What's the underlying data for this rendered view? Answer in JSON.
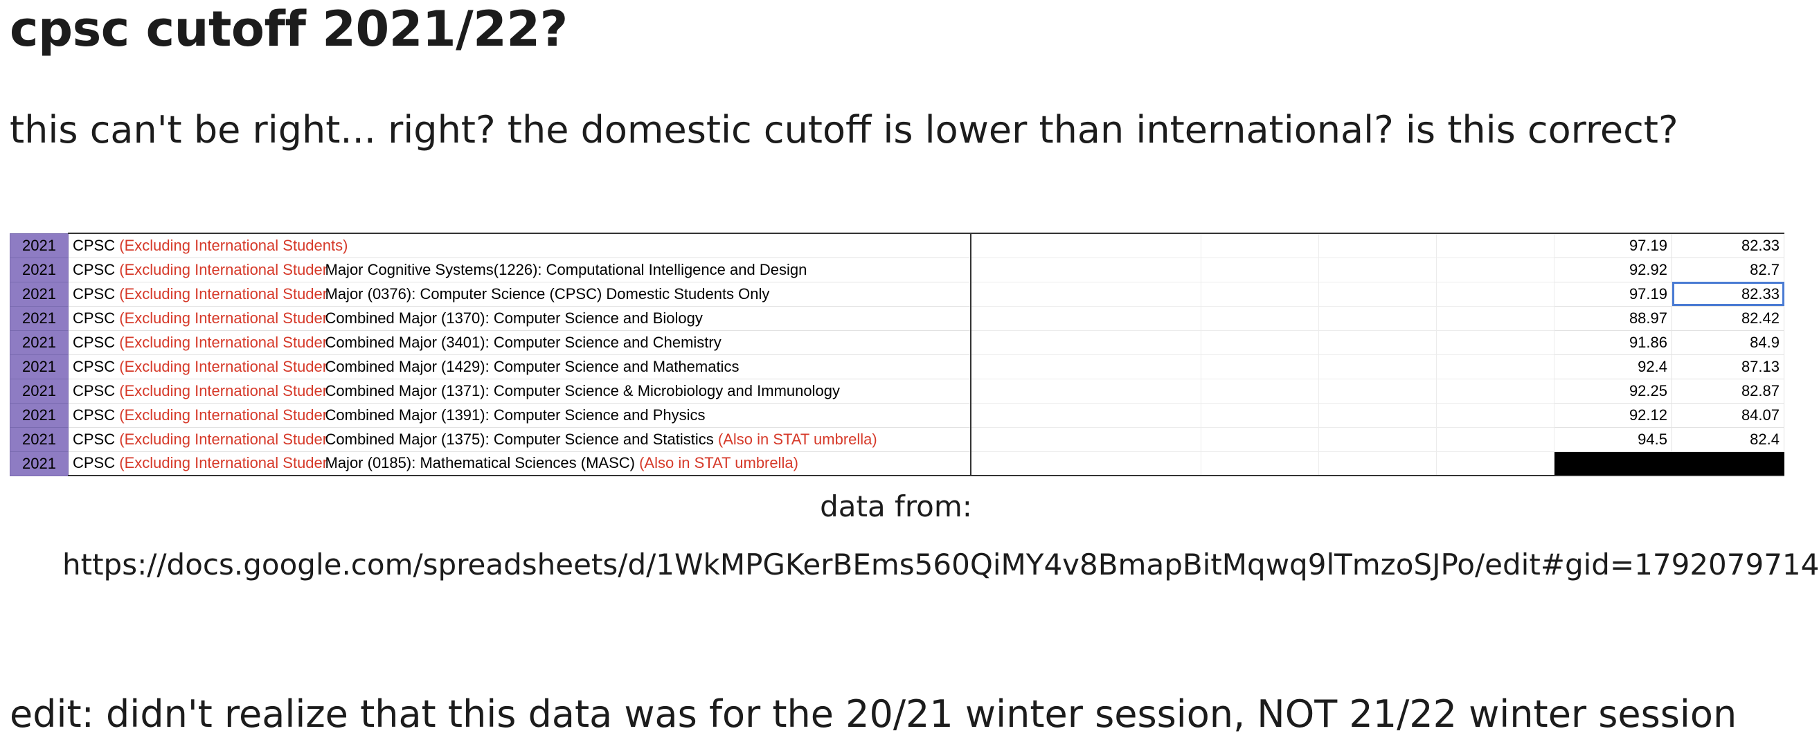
{
  "post": {
    "title": "cpsc cutoff 2021/22?",
    "body": "this can't be right... right? the domestic cutoff is lower than international? is this correct?",
    "source_label": "data from:",
    "source_url": "https://docs.google.com/spreadsheets/d/1WkMPGKerBEms560QiMY4v8BmapBitMqwq9lTmzoSJPo/edit#gid=1792079714",
    "edit_note": "edit: didn't realize that this data was for the 20/21 winter session, NOT 21/22 winter session"
  },
  "sheet": {
    "rows": [
      {
        "year": "2021",
        "prefix": "CPSC",
        "excl": "(Excluding International Students)",
        "program": "",
        "note": "",
        "v1": "97.19",
        "v2": "82.33"
      },
      {
        "year": "2021",
        "prefix": "CPSC",
        "excl": "(Excluding International Studer",
        "program": "Major Cognitive Systems(1226): Computational Intelligence and Design",
        "note": "",
        "v1": "92.92",
        "v2": "82.7"
      },
      {
        "year": "2021",
        "prefix": "CPSC",
        "excl": "(Excluding International Studer",
        "program": "Major (0376): Computer Science (CPSC) Domestic Students Only",
        "note": "",
        "v1": "97.19",
        "v2": "82.33"
      },
      {
        "year": "2021",
        "prefix": "CPSC",
        "excl": "(Excluding International Studer",
        "program": "Combined Major (1370): Computer Science and Biology",
        "note": "",
        "v1": "88.97",
        "v2": "82.42"
      },
      {
        "year": "2021",
        "prefix": "CPSC",
        "excl": "(Excluding International Studer",
        "program": "Combined Major (3401): Computer Science and Chemistry",
        "note": "",
        "v1": "91.86",
        "v2": "84.9"
      },
      {
        "year": "2021",
        "prefix": "CPSC",
        "excl": "(Excluding International Studer",
        "program": "Combined Major (1429): Computer Science and Mathematics",
        "note": "",
        "v1": "92.4",
        "v2": "87.13"
      },
      {
        "year": "2021",
        "prefix": "CPSC",
        "excl": "(Excluding International Studer",
        "program": "Combined Major (1371): Computer Science & Microbiology and Immunology",
        "note": "",
        "v1": "92.25",
        "v2": "82.87"
      },
      {
        "year": "2021",
        "prefix": "CPSC",
        "excl": "(Excluding International Studer",
        "program": "Combined Major (1391): Computer Science and Physics",
        "note": "",
        "v1": "92.12",
        "v2": "84.07"
      },
      {
        "year": "2021",
        "prefix": "CPSC",
        "excl": "(Excluding International Studer",
        "program": "Combined Major (1375): Computer Science and Statistics",
        "note": "(Also in STAT umbrella)",
        "v1": "94.5",
        "v2": "82.4"
      },
      {
        "year": "2021",
        "prefix": "CPSC",
        "excl": "(Excluding International Studer",
        "program": "Major (0185): Mathematical Sciences (MASC)",
        "note": "(Also in STAT umbrella)",
        "v1": "",
        "v2": "",
        "redacted": true
      }
    ],
    "selected_cell": {
      "row": 2,
      "col": "v2"
    },
    "colors": {
      "year_fill": "#8e7cc3",
      "note_red": "#d63a2a",
      "selection": "#4a7bd3"
    }
  }
}
